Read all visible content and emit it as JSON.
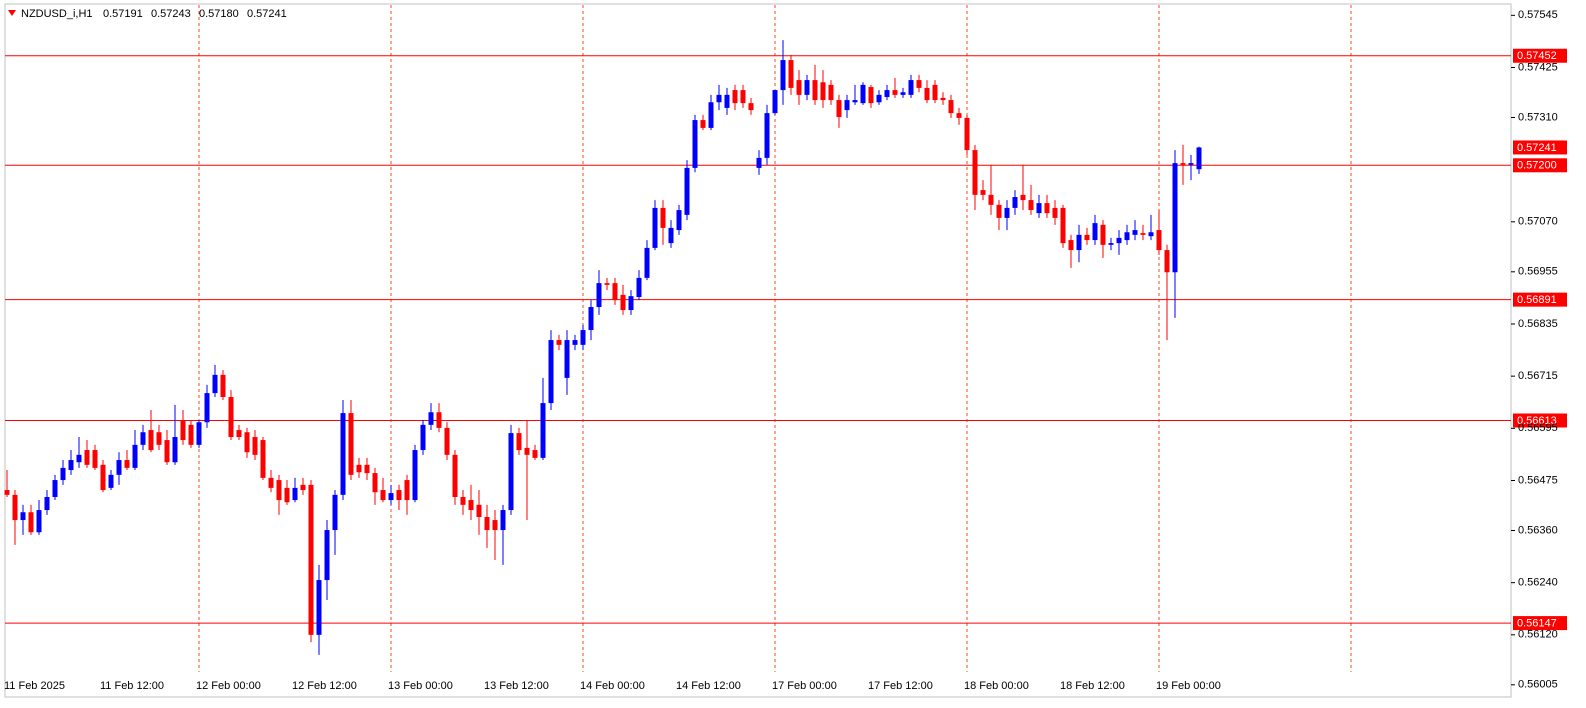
{
  "chart_data": {
    "type": "candlestick",
    "title": "NZDUSD_i,H1",
    "quote": [
      "0.57191",
      "0.57243",
      "0.57180",
      "0.57241"
    ],
    "up_color": "#0000ff",
    "down_color": "#ff0000",
    "level_color": "#ff0000",
    "grid": true,
    "ylim": [
      0.55977,
      0.57571
    ],
    "yticks": [
      0.57545,
      0.57425,
      {
        "value": 0.5731,
        "label": "0.57310"
      },
      {
        "value": 0.5707,
        "label": "0.57070"
      },
      0.56955,
      0.56835,
      0.56715,
      0.56595,
      0.56475,
      {
        "value": 0.5636,
        "label": "0.56360"
      },
      {
        "value": 0.5624,
        "label": "0.56240"
      },
      {
        "value": 0.5612,
        "label": "0.56120"
      },
      0.56005
    ],
    "levels": [
      0.57452,
      {
        "value": 0.572,
        "label": "0.57200"
      },
      0.56891,
      0.56613,
      0.56147
    ],
    "bid": 0.57241,
    "categories": [
      "11 Feb 2025",
      null,
      null,
      null,
      null,
      null,
      null,
      null,
      null,
      null,
      null,
      null,
      "11 Feb 12:00",
      null,
      null,
      null,
      null,
      null,
      null,
      null,
      null,
      null,
      null,
      null,
      "12 Feb 00:00",
      null,
      null,
      null,
      null,
      null,
      null,
      null,
      null,
      null,
      null,
      null,
      "12 Feb 12:00",
      null,
      null,
      null,
      null,
      null,
      null,
      null,
      null,
      null,
      null,
      null,
      "13 Feb 00:00",
      null,
      null,
      null,
      null,
      null,
      null,
      null,
      null,
      null,
      null,
      null,
      "13 Feb 12:00",
      null,
      null,
      null,
      null,
      null,
      null,
      null,
      null,
      null,
      null,
      null,
      "14 Feb 00:00",
      null,
      null,
      null,
      null,
      null,
      null,
      null,
      null,
      null,
      null,
      null,
      "14 Feb 12:00",
      null,
      null,
      null,
      null,
      null,
      null,
      null,
      null,
      null,
      null,
      null,
      "17 Feb 00:00",
      null,
      null,
      null,
      null,
      null,
      null,
      null,
      null,
      null,
      null,
      null,
      "17 Feb 12:00",
      null,
      null,
      null,
      null,
      null,
      null,
      null,
      null,
      null,
      null,
      null,
      "18 Feb 00:00",
      null,
      null,
      null,
      null,
      null,
      null,
      null,
      null,
      null,
      null,
      null,
      "18 Feb 12:00",
      null,
      null,
      null,
      null,
      null,
      null,
      null,
      null,
      null,
      null,
      null,
      "19 Feb 00:00",
      null,
      null,
      null,
      null,
      null
    ],
    "ohlc": [
      [
        0.56453,
        0.56499,
        0.56437,
        0.56442
      ],
      [
        0.56442,
        0.56453,
        0.56327,
        0.56384
      ],
      [
        0.56384,
        0.56419,
        0.5635,
        0.56402
      ],
      [
        0.56402,
        0.56419,
        0.5635,
        0.56356
      ],
      [
        0.56356,
        0.5643,
        0.5635,
        0.56407
      ],
      [
        0.56407,
        0.56453,
        0.56396,
        0.56437
      ],
      [
        0.56437,
        0.56488,
        0.5643,
        0.56476
      ],
      [
        0.56476,
        0.56522,
        0.56465,
        0.56504
      ],
      [
        0.56499,
        0.56545,
        0.56488,
        0.56522
      ],
      [
        0.56517,
        0.56575,
        0.56504,
        0.56534
      ],
      [
        0.56545,
        0.56568,
        0.56504,
        0.56511
      ],
      [
        0.56545,
        0.56557,
        0.56499,
        0.56504
      ],
      [
        0.56511,
        0.56522,
        0.56448,
        0.56453
      ],
      [
        0.56458,
        0.56499,
        0.56453,
        0.56488
      ],
      [
        0.56488,
        0.5654,
        0.56465,
        0.56522
      ],
      [
        0.56522,
        0.56545,
        0.56499,
        0.56504
      ],
      [
        0.56504,
        0.56591,
        0.56499,
        0.56557
      ],
      [
        0.56557,
        0.56603,
        0.56545,
        0.56586
      ],
      [
        0.56591,
        0.56637,
        0.5654,
        0.56545
      ],
      [
        0.56586,
        0.56603,
        0.56545,
        0.56557
      ],
      [
        0.56568,
        0.56591,
        0.56511,
        0.56517
      ],
      [
        0.56517,
        0.56649,
        0.56511,
        0.56575
      ],
      [
        0.56614,
        0.56637,
        0.56557,
        0.56568
      ],
      [
        0.56603,
        0.56614,
        0.5655,
        0.56557
      ],
      [
        0.56557,
        0.56614,
        0.5655,
        0.56609
      ],
      [
        0.56609,
        0.56695,
        0.56596,
        0.56676
      ],
      [
        0.56676,
        0.56741,
        0.56667,
        0.56718
      ],
      [
        0.56718,
        0.56729,
        0.5666,
        0.56667
      ],
      [
        0.56667,
        0.56683,
        0.56568,
        0.56575
      ],
      [
        0.56591,
        0.56603,
        0.56568,
        0.56575
      ],
      [
        0.56586,
        0.56596,
        0.56527,
        0.5654
      ],
      [
        0.56575,
        0.56591,
        0.56522,
        0.56534
      ],
      [
        0.56568,
        0.56575,
        0.56476,
        0.56481
      ],
      [
        0.56481,
        0.56499,
        0.56448,
        0.56458
      ],
      [
        0.56476,
        0.56488,
        0.56396,
        0.5643
      ],
      [
        0.56458,
        0.56476,
        0.56419,
        0.56425
      ],
      [
        0.5643,
        0.56481,
        0.56425,
        0.56458
      ],
      [
        0.56465,
        0.56481,
        0.56442,
        0.56453
      ],
      [
        0.56465,
        0.56476,
        0.56103,
        0.5612
      ],
      [
        0.5612,
        0.56281,
        0.56074,
        0.56246
      ],
      [
        0.56246,
        0.56384,
        0.562,
        0.56361
      ],
      [
        0.56361,
        0.56453,
        0.56304,
        0.56442
      ],
      [
        0.56442,
        0.5666,
        0.5643,
        0.5663
      ],
      [
        0.5663,
        0.5666,
        0.56476,
        0.56488
      ],
      [
        0.56511,
        0.56527,
        0.56481,
        0.56494
      ],
      [
        0.56511,
        0.56527,
        0.56476,
        0.56492
      ],
      [
        0.56492,
        0.56504,
        0.56419,
        0.56448
      ],
      [
        0.56453,
        0.56481,
        0.56425,
        0.5643
      ],
      [
        0.5643,
        0.56465,
        0.56419,
        0.56446
      ],
      [
        0.56453,
        0.56465,
        0.56407,
        0.5643
      ],
      [
        0.56476,
        0.56488,
        0.56396,
        0.5643
      ],
      [
        0.5643,
        0.56557,
        0.56425,
        0.56545
      ],
      [
        0.56545,
        0.56614,
        0.56534,
        0.56603
      ],
      [
        0.56603,
        0.56653,
        0.56591,
        0.56632
      ],
      [
        0.56632,
        0.56653,
        0.56586,
        0.56596
      ],
      [
        0.56596,
        0.56609,
        0.56522,
        0.56534
      ],
      [
        0.56534,
        0.56545,
        0.56419,
        0.56437
      ],
      [
        0.56437,
        0.56453,
        0.56396,
        0.56419
      ],
      [
        0.5643,
        0.56465,
        0.56384,
        0.56407
      ],
      [
        0.56419,
        0.56453,
        0.5635,
        0.56391
      ],
      [
        0.56391,
        0.56419,
        0.5632,
        0.56361
      ],
      [
        0.56384,
        0.56407,
        0.56292,
        0.56361
      ],
      [
        0.56361,
        0.56419,
        0.56281,
        0.56407
      ],
      [
        0.56407,
        0.56603,
        0.56396,
        0.56584
      ],
      [
        0.56584,
        0.56596,
        0.56534,
        0.56545
      ],
      [
        0.5655,
        0.56614,
        0.56384,
        0.56534
      ],
      [
        0.56545,
        0.56557,
        0.56522,
        0.56527
      ],
      [
        0.56527,
        0.56711,
        0.56522,
        0.56653
      ],
      [
        0.56653,
        0.56821,
        0.56637,
        0.56798
      ],
      [
        0.56798,
        0.5681,
        0.56775,
        0.56787
      ],
      [
        0.56711,
        0.56821,
        0.56672,
        0.56798
      ],
      [
        0.56787,
        0.5681,
        0.56775,
        0.56798
      ],
      [
        0.56787,
        0.56833,
        0.56775,
        0.56821
      ],
      [
        0.56821,
        0.5689,
        0.56798,
        0.56874
      ],
      [
        0.56874,
        0.56959,
        0.56856,
        0.56929
      ],
      [
        0.56929,
        0.56941,
        0.56913,
        0.56925
      ],
      [
        0.56929,
        0.56941,
        0.56879,
        0.5689
      ],
      [
        0.56902,
        0.56925,
        0.56856,
        0.56867
      ],
      [
        0.56867,
        0.56913,
        0.56856,
        0.56899
      ],
      [
        0.56897,
        0.56959,
        0.5689,
        0.56941
      ],
      [
        0.56941,
        0.57028,
        0.56936,
        0.5701
      ],
      [
        0.5701,
        0.5712,
        0.57005,
        0.57102
      ],
      [
        0.57102,
        0.5712,
        0.57017,
        0.57056
      ],
      [
        0.57021,
        0.57074,
        0.5701,
        0.57056
      ],
      [
        0.57051,
        0.57109,
        0.5704,
        0.57097
      ],
      [
        0.57086,
        0.57212,
        0.57074,
        0.57194
      ],
      [
        0.57194,
        0.57316,
        0.57184,
        0.57304
      ],
      [
        0.57304,
        0.57316,
        0.57281,
        0.57286
      ],
      [
        0.57286,
        0.57362,
        0.57281,
        0.57345
      ],
      [
        0.57345,
        0.57385,
        0.57327,
        0.57362
      ],
      [
        0.57332,
        0.57378,
        0.57316,
        0.57362
      ],
      [
        0.57373,
        0.57385,
        0.57327,
        0.57343
      ],
      [
        0.57373,
        0.57385,
        0.57332,
        0.57343
      ],
      [
        0.57343,
        0.57355,
        0.57316,
        0.57327
      ],
      [
        0.57194,
        0.57235,
        0.57178,
        0.57217
      ],
      [
        0.57217,
        0.57339,
        0.57201,
        0.5732
      ],
      [
        0.5732,
        0.57373,
        0.57316,
        0.57373
      ],
      [
        0.57373,
        0.57488,
        0.57339,
        0.57442
      ],
      [
        0.57442,
        0.57454,
        0.57362,
        0.57378
      ],
      [
        0.57396,
        0.57419,
        0.57339,
        0.57362
      ],
      [
        0.57362,
        0.57408,
        0.5735,
        0.57396
      ],
      [
        0.57396,
        0.57431,
        0.57339,
        0.5735
      ],
      [
        0.57391,
        0.57419,
        0.57332,
        0.5735
      ],
      [
        0.57385,
        0.57396,
        0.57339,
        0.5735
      ],
      [
        0.5735,
        0.57362,
        0.57286,
        0.57311
      ],
      [
        0.57327,
        0.57362,
        0.57309,
        0.5735
      ],
      [
        0.57345,
        0.57385,
        0.57339,
        0.5735
      ],
      [
        0.57343,
        0.57391,
        0.57339,
        0.57385
      ],
      [
        0.5738,
        0.57385,
        0.57332,
        0.57343
      ],
      [
        0.57345,
        0.57373,
        0.57339,
        0.57362
      ],
      [
        0.57357,
        0.57385,
        0.5735,
        0.57373
      ],
      [
        0.57373,
        0.57401,
        0.57355,
        0.57362
      ],
      [
        0.57362,
        0.57378,
        0.57355,
        0.57368
      ],
      [
        0.57362,
        0.57408,
        0.57355,
        0.57396
      ],
      [
        0.57396,
        0.57408,
        0.57368,
        0.57378
      ],
      [
        0.57378,
        0.57396,
        0.57343,
        0.5735
      ],
      [
        0.57385,
        0.57396,
        0.57343,
        0.5735
      ],
      [
        0.57355,
        0.57368,
        0.57339,
        0.5735
      ],
      [
        0.5735,
        0.57362,
        0.57309,
        0.5732
      ],
      [
        0.5732,
        0.57332,
        0.57293,
        0.57309
      ],
      [
        0.57309,
        0.57316,
        0.57224,
        0.57235
      ],
      [
        0.57235,
        0.57247,
        0.57097,
        0.57132
      ],
      [
        0.57143,
        0.57166,
        0.5712,
        0.57132
      ],
      [
        0.57132,
        0.57201,
        0.57086,
        0.57109
      ],
      [
        0.57109,
        0.5712,
        0.57051,
        0.57079
      ],
      [
        0.57079,
        0.5712,
        0.57051,
        0.57102
      ],
      [
        0.57102,
        0.57143,
        0.57086,
        0.57127
      ],
      [
        0.57132,
        0.57201,
        0.57097,
        0.5712
      ],
      [
        0.5712,
        0.57155,
        0.57086,
        0.57097
      ],
      [
        0.5709,
        0.57132,
        0.57079,
        0.57113
      ],
      [
        0.57113,
        0.57132,
        0.57079,
        0.5709
      ],
      [
        0.57102,
        0.5712,
        0.57063,
        0.57079
      ],
      [
        0.57102,
        0.57109,
        0.5701,
        0.57021
      ],
      [
        0.57028,
        0.5704,
        0.56964,
        0.57005
      ],
      [
        0.57005,
        0.57063,
        0.56977,
        0.5704
      ],
      [
        0.5704,
        0.57056,
        0.57017,
        0.57028
      ],
      [
        0.57028,
        0.57086,
        0.57017,
        0.57067
      ],
      [
        0.57063,
        0.57074,
        0.56987,
        0.57017
      ],
      [
        0.57017,
        0.57033,
        0.57005,
        0.57021
      ],
      [
        0.57021,
        0.57051,
        0.56994,
        0.57033
      ],
      [
        0.57028,
        0.57063,
        0.57017,
        0.57046
      ],
      [
        0.5704,
        0.57074,
        0.57028,
        0.57051
      ],
      [
        0.57044,
        0.57063,
        0.57028,
        0.5704
      ],
      [
        0.57037,
        0.57086,
        0.57028,
        0.57046
      ],
      [
        0.57051,
        0.57097,
        0.56994,
        0.57005
      ],
      [
        0.57005,
        0.57017,
        0.56798,
        0.56954
      ],
      [
        0.56954,
        0.57235,
        0.56849,
        0.57205
      ],
      [
        0.57205,
        0.57247,
        0.57155,
        0.57201
      ],
      [
        0.57201,
        0.57224,
        0.57166,
        0.57205
      ],
      [
        0.57191,
        0.57243,
        0.5718,
        0.57241
      ]
    ]
  }
}
